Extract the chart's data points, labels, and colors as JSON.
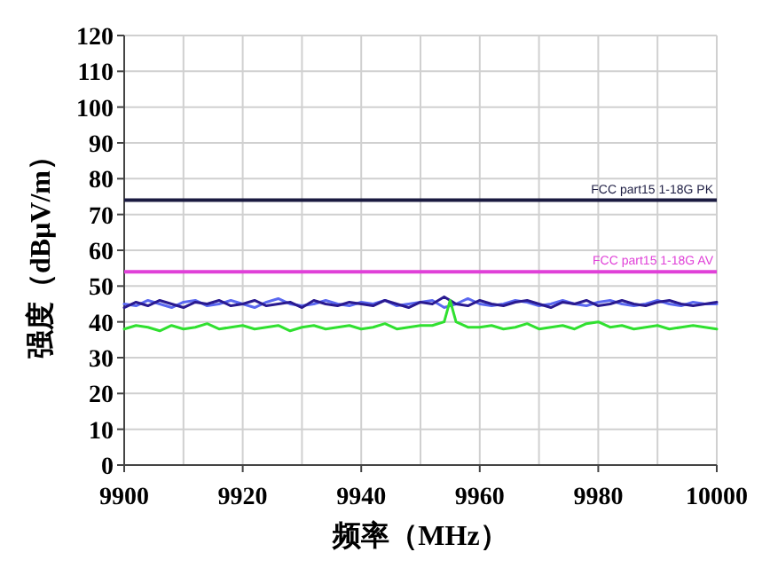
{
  "chart_data": {
    "type": "line",
    "xlabel": "频率（MHz）",
    "ylabel": "强度（dBμV/m）",
    "xlim": [
      9900,
      10000
    ],
    "xticks": [
      9900,
      9920,
      9940,
      9960,
      9980,
      10000
    ],
    "ylim": [
      0,
      120
    ],
    "yticks": [
      0,
      10,
      20,
      30,
      40,
      50,
      60,
      70,
      80,
      90,
      100,
      110,
      120
    ],
    "grid": true,
    "marker": "none",
    "line_style": "solid",
    "x": [
      9900,
      9902,
      9904,
      9906,
      9908,
      9910,
      9912,
      9914,
      9916,
      9918,
      9920,
      9922,
      9924,
      9926,
      9928,
      9930,
      9932,
      9934,
      9936,
      9938,
      9940,
      9942,
      9944,
      9946,
      9948,
      9950,
      9952,
      9954,
      9956,
      9958,
      9960,
      9962,
      9964,
      9966,
      9968,
      9970,
      9972,
      9974,
      9976,
      9978,
      9980,
      9982,
      9984,
      9986,
      9988,
      9990,
      9992,
      9994,
      9996,
      9998,
      10000
    ],
    "series": [
      {
        "color": "#5a68f0",
        "values": [
          45,
          44.5,
          46,
          45,
          44,
          45.5,
          46,
          44.5,
          45,
          46,
          45,
          44,
          45.5,
          46.5,
          45,
          44.5,
          45,
          46,
          45,
          44.5,
          45.5,
          45,
          46,
          44.5,
          45,
          45.5,
          46,
          44,
          45,
          46.5,
          45,
          44.5,
          45,
          46,
          45.5,
          44.5,
          45,
          46,
          45,
          44.5,
          45.5,
          46,
          45,
          44.5,
          45,
          46,
          45,
          44.5,
          45.5,
          45,
          45
        ]
      },
      {
        "color": "#2a1a90",
        "values": [
          44,
          45.5,
          44.5,
          46,
          45,
          44,
          45.5,
          45,
          46,
          44.5,
          45,
          46,
          44.5,
          45,
          45.5,
          44,
          46,
          45,
          44.5,
          45.5,
          45,
          44.5,
          46,
          45,
          44,
          45.5,
          45,
          47,
          45,
          44.5,
          46,
          45,
          44.5,
          45.5,
          46,
          45,
          44,
          45.5,
          45,
          46,
          44.5,
          45,
          46,
          45,
          44.5,
          45.5,
          46,
          45,
          44.5,
          45,
          45.5
        ]
      },
      {
        "color": "#30e030",
        "x": [
          9900,
          9902,
          9904,
          9906,
          9908,
          9910,
          9912,
          9914,
          9916,
          9918,
          9920,
          9922,
          9924,
          9926,
          9928,
          9930,
          9932,
          9934,
          9936,
          9938,
          9940,
          9942,
          9944,
          9946,
          9948,
          9950,
          9952,
          9954,
          9955,
          9956,
          9958,
          9960,
          9962,
          9964,
          9966,
          9968,
          9970,
          9972,
          9974,
          9976,
          9978,
          9980,
          9982,
          9984,
          9986,
          9988,
          9990,
          9992,
          9994,
          9996,
          9998,
          10000
        ],
        "values": [
          38,
          39,
          38.5,
          37.5,
          39,
          38,
          38.5,
          39.5,
          38,
          38.5,
          39,
          38,
          38.5,
          39,
          37.5,
          38.5,
          39,
          38,
          38.5,
          39,
          38,
          38.5,
          39.5,
          38,
          38.5,
          39,
          39,
          40,
          46,
          40,
          38.5,
          38.5,
          39,
          38,
          38.5,
          39.5,
          38,
          38.5,
          39,
          38,
          39.5,
          40,
          38.5,
          39,
          38,
          38.5,
          39,
          38,
          38.5,
          39,
          38.5,
          38
        ]
      }
    ],
    "ref_lines": [
      {
        "axis": "y",
        "value": 74,
        "label": "FCC part15 1-18G PK",
        "color": "#1a1a40"
      },
      {
        "axis": "y",
        "value": 54,
        "label": "FCC part15 1-18G AV",
        "color": "#e040d8"
      }
    ]
  }
}
